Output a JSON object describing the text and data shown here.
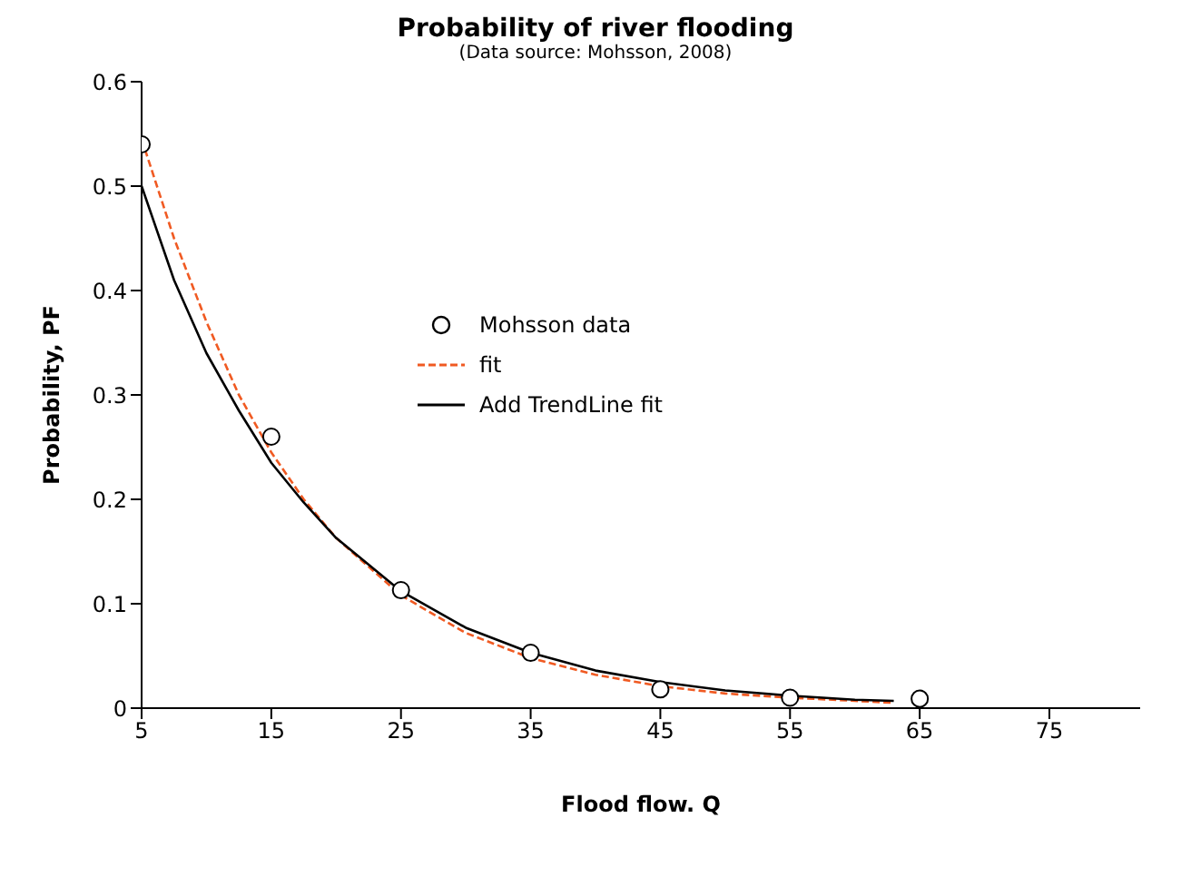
{
  "chart_data": {
    "type": "scatter",
    "title": "Probability of river flooding",
    "subtitle": "(Data source: Mohsson, 2008)",
    "xlabel": "Flood flow. Q",
    "ylabel": "Probability, PF",
    "x": [
      5,
      15,
      25,
      35,
      45,
      55,
      65
    ],
    "series": [
      {
        "name": "Mohsson data",
        "color": "#000000",
        "marker": "circle",
        "values": [
          0.54,
          0.26,
          0.113,
          0.053,
          0.018,
          0.01,
          0.009
        ]
      },
      {
        "name": "fit",
        "type": "line",
        "color": "#f05a22",
        "line_style": "dashed",
        "marker": "none",
        "x": [
          5,
          7.5,
          10,
          12.5,
          15,
          17.5,
          20,
          25,
          30,
          35,
          40,
          45,
          50,
          55,
          60,
          63
        ],
        "values": [
          0.545,
          0.45,
          0.37,
          0.3,
          0.245,
          0.2,
          0.163,
          0.108,
          0.072,
          0.048,
          0.032,
          0.021,
          0.014,
          0.01,
          0.007,
          0.005
        ]
      },
      {
        "name": "Add TrendLine fit",
        "type": "line",
        "color": "#000000",
        "line_style": "solid",
        "marker": "none",
        "x": [
          5,
          7.5,
          10,
          12.5,
          15,
          17.5,
          20,
          25,
          30,
          35,
          40,
          45,
          50,
          55,
          60,
          63
        ],
        "values": [
          0.5,
          0.41,
          0.34,
          0.285,
          0.235,
          0.197,
          0.163,
          0.112,
          0.077,
          0.053,
          0.036,
          0.025,
          0.017,
          0.012,
          0.008,
          0.007
        ]
      }
    ],
    "xlim": [
      5,
      82
    ],
    "xticks": [
      5,
      15,
      25,
      35,
      45,
      55,
      65,
      75
    ],
    "ylim": [
      0,
      0.6
    ],
    "yticks": [
      0,
      0.1,
      0.2,
      0.3,
      0.4,
      0.5,
      0.6
    ],
    "grid": false,
    "legend": "center"
  }
}
